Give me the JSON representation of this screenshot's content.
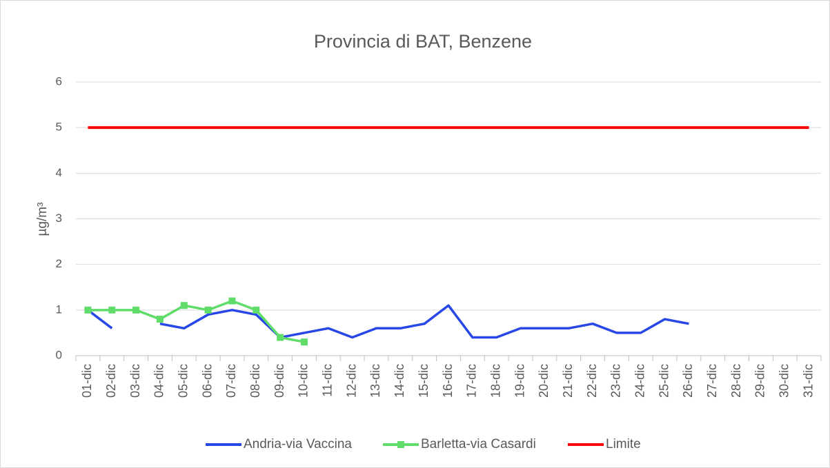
{
  "chart_data": {
    "type": "line",
    "title": "Provincia di BAT, Benzene",
    "y_label": "µg/m³",
    "categories": [
      "01-dic",
      "02-dic",
      "03-dic",
      "04-dic",
      "05-dic",
      "06-dic",
      "07-dic",
      "08-dic",
      "09-dic",
      "10-dic",
      "11-dic",
      "12-dic",
      "13-dic",
      "14-dic",
      "15-dic",
      "16-dic",
      "17-dic",
      "18-dic",
      "19-dic",
      "20-dic",
      "21-dic",
      "22-dic",
      "23-dic",
      "24-dic",
      "25-dic",
      "26-dic",
      "27-dic",
      "28-dic",
      "29-dic",
      "30-dic",
      "31-dic"
    ],
    "series": [
      {
        "name": "Andria-via Vaccina",
        "color": "#2747e6",
        "marker": false,
        "values": [
          1.0,
          0.6,
          null,
          0.7,
          0.6,
          0.9,
          1.0,
          0.9,
          0.4,
          0.5,
          0.6,
          0.4,
          0.6,
          0.6,
          0.7,
          1.1,
          0.4,
          0.4,
          0.6,
          0.6,
          0.6,
          0.7,
          0.5,
          0.5,
          0.8,
          0.7,
          null,
          null,
          null,
          null,
          null
        ]
      },
      {
        "name": "Barletta-via Casardi",
        "color": "#5fdc6a",
        "marker": true,
        "values": [
          1.0,
          1.0,
          1.0,
          0.8,
          1.1,
          1.0,
          1.2,
          1.0,
          0.4,
          0.3,
          null,
          null,
          null,
          null,
          null,
          null,
          null,
          null,
          null,
          null,
          null,
          null,
          null,
          null,
          null,
          null,
          null,
          null,
          null,
          null,
          null
        ]
      },
      {
        "name": "Limite",
        "color": "#ff0000",
        "marker": false,
        "values": [
          5,
          5,
          5,
          5,
          5,
          5,
          5,
          5,
          5,
          5,
          5,
          5,
          5,
          5,
          5,
          5,
          5,
          5,
          5,
          5,
          5,
          5,
          5,
          5,
          5,
          5,
          5,
          5,
          5,
          5,
          5
        ]
      }
    ],
    "ylim": [
      0,
      6
    ],
    "yticks": [
      0,
      1,
      2,
      3,
      4,
      5,
      6
    ],
    "grid": true,
    "legend": "bottom"
  }
}
